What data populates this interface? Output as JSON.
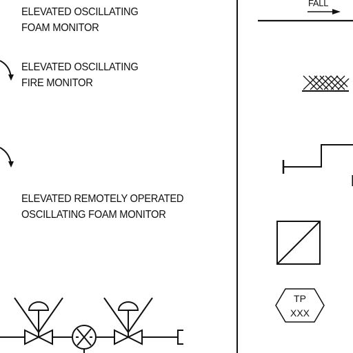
{
  "legend": {
    "foam_monitor": {
      "line1": "ELEVATED OSCILLATING",
      "line2": "FOAM MONITOR"
    },
    "fire_monitor": {
      "line1": "ELEVATED OSCILLATING",
      "line2": "FIRE MONITOR"
    },
    "remote_foam_monitor": {
      "line1": "ELEVATED REMOTELY OPERATED",
      "line2": "OSCILLATING FOAM MONITOR"
    },
    "fall_label": "FALL",
    "test_point": {
      "line1": "TP",
      "line2": "XXX"
    }
  },
  "colors": {
    "ink": "#111111",
    "background": "#ffffff"
  }
}
